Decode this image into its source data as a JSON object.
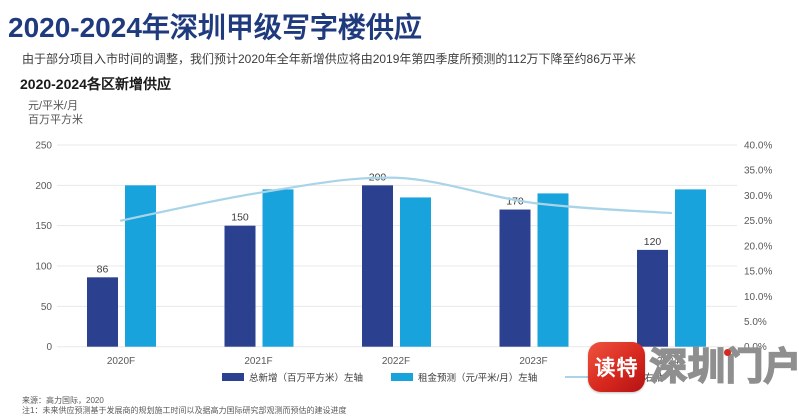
{
  "header": {
    "title": "2020-2024年深圳甲级写字楼供应",
    "subtitle": "由于部分项目入市时间的调整，我们预计2020年全年新增供应将由2019年第四季度所预测的112万下降至约86万平米",
    "section_title": "2020-2024各区新增供应"
  },
  "chart_data": {
    "type": "combo-bar-line",
    "title": "2020-2024各区新增供应",
    "categories": [
      "2020F",
      "2021F",
      "2022F",
      "2023F",
      "2024F"
    ],
    "series": [
      {
        "name": "总新增（百万平方米）左轴",
        "type": "bar",
        "axis": "left",
        "color": "#2B418F",
        "values": [
          86,
          150,
          200,
          170,
          120
        ],
        "data_labels": true
      },
      {
        "name": "租金预测（元/平米/月）左轴",
        "type": "bar",
        "axis": "left",
        "color": "#18A3DC",
        "values": [
          200,
          195,
          185,
          190,
          195
        ],
        "data_labels": false
      },
      {
        "name": "空置率预测 右轴",
        "type": "line",
        "axis": "right",
        "color": "#A9D4E8",
        "values": [
          25.0,
          30.5,
          33.5,
          28.5,
          26.5
        ],
        "data_labels": false
      }
    ],
    "left_axis": {
      "unit_lines": [
        "元/平米/月",
        "百万平方米"
      ],
      "min": 0,
      "max": 250,
      "step": 50
    },
    "right_axis": {
      "min": 0,
      "max": 40,
      "step": 5,
      "suffix": "%"
    },
    "grid": true,
    "legend_position": "bottom"
  },
  "footer": {
    "source": "来源：高力国际，2020",
    "note": "注1：未来供应预测基于发展商的规划施工时间以及据高力国际研究部观测而预估的建设进度"
  },
  "watermark": {
    "badge_text": "读特",
    "site_text": "深圳门户"
  },
  "colors": {
    "title_navy": "#1F3A7D",
    "bar_dark": "#2B418F",
    "bar_light": "#18A3DC",
    "vacancy_line": "#A9D4E8",
    "gridline": "#e8e8e8",
    "axis_text": "#595959",
    "watermark_red": "#D6281E"
  }
}
